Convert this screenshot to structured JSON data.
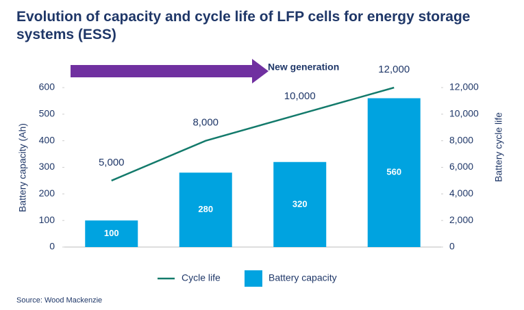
{
  "chart_data": {
    "type": "bar",
    "title": [
      "Evolution of capacity and cycle life of LFP cells for energy storage",
      "systems (ESS)"
    ],
    "annotation": "New generation",
    "y_label": "Battery capacity (Ah)",
    "y2_label": "Battery cycle life",
    "source": "Source: Wood Mackenzie",
    "categories": [
      null,
      null,
      null,
      null
    ],
    "series": [
      {
        "name": "Cycle life",
        "type": "line",
        "axis": "y2",
        "color": "#137a6b",
        "values": [
          5000,
          8000,
          10000,
          12000
        ],
        "value_labels": [
          "5,000",
          "8,000",
          "10,000",
          "12,000"
        ]
      },
      {
        "name": "Battery capacity",
        "type": "bar",
        "color": "#00a3e0",
        "values": [
          100,
          280,
          320,
          560
        ]
      }
    ],
    "ylim": [
      0,
      600
    ],
    "yticks": [
      0,
      100,
      200,
      300,
      400,
      500,
      600
    ],
    "y2lim": [
      0,
      12000
    ],
    "y2ticks": [
      0,
      {
        "value": 2000,
        "label": "2,000"
      },
      {
        "value": 4000,
        "label": "4,000"
      },
      {
        "value": 6000,
        "label": "6,000"
      },
      {
        "value": 8000,
        "label": "8,000"
      },
      {
        "value": 10000,
        "label": "10,000"
      },
      {
        "value": 12000,
        "label": "12,000"
      }
    ],
    "grid": false
  }
}
